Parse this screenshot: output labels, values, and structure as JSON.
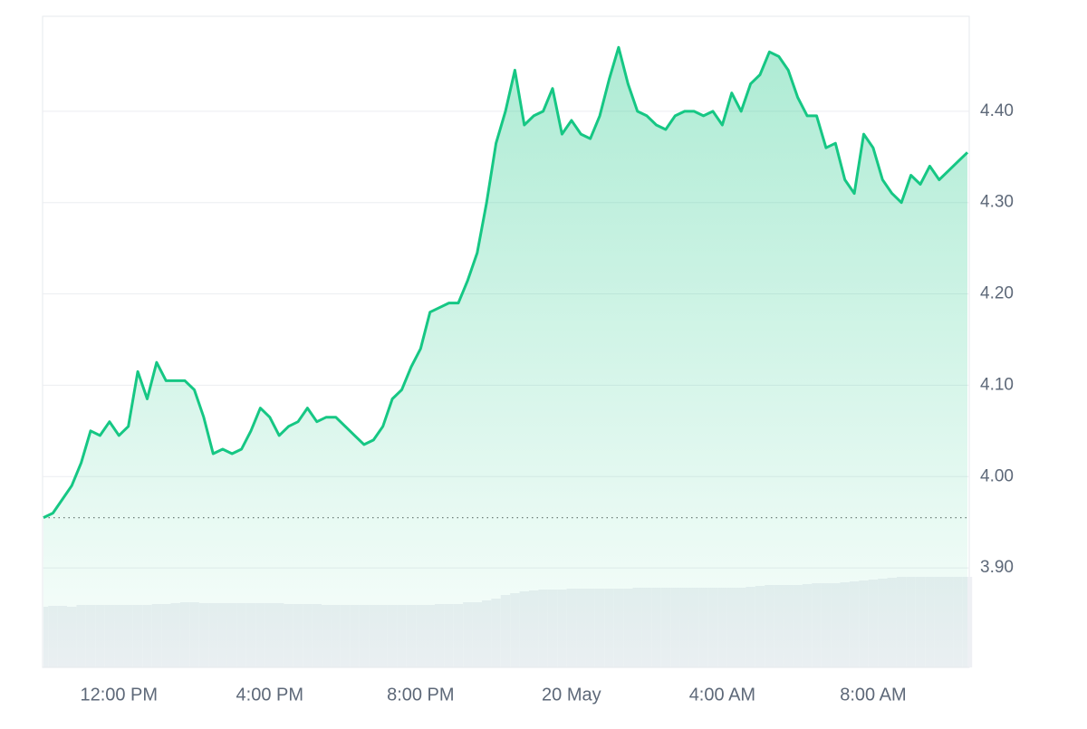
{
  "chart_data": {
    "type": "line",
    "categories": [
      null,
      null,
      null,
      null,
      null,
      null,
      null,
      null,
      "12:00 PM",
      null,
      null,
      null,
      null,
      null,
      null,
      null,
      null,
      null,
      null,
      null,
      null,
      null,
      null,
      null,
      "4:00 PM",
      null,
      null,
      null,
      null,
      null,
      null,
      null,
      null,
      null,
      null,
      null,
      null,
      null,
      null,
      null,
      "8:00 PM",
      null,
      null,
      null,
      null,
      null,
      null,
      null,
      null,
      null,
      null,
      null,
      null,
      null,
      null,
      null,
      "20 May",
      null,
      null,
      null,
      null,
      null,
      null,
      null,
      null,
      null,
      null,
      null,
      null,
      null,
      null,
      null,
      "4:00 AM",
      null,
      null,
      null,
      null,
      null,
      null,
      null,
      null,
      null,
      null,
      null,
      null,
      null,
      null,
      null,
      "8:00 AM",
      null,
      null,
      null,
      null,
      null,
      null,
      null,
      null,
      null,
      null
    ],
    "series": [
      {
        "color": "#16c784",
        "values": [
          3.955,
          3.96,
          3.975,
          3.99,
          4.015,
          4.05,
          4.045,
          4.06,
          4.045,
          4.055,
          4.115,
          4.085,
          4.125,
          4.105,
          4.105,
          4.105,
          4.095,
          4.065,
          4.025,
          4.03,
          4.025,
          4.03,
          4.05,
          4.075,
          4.065,
          4.045,
          4.055,
          4.06,
          4.075,
          4.06,
          4.065,
          4.065,
          4.055,
          4.045,
          4.035,
          4.04,
          4.055,
          4.085,
          4.095,
          4.12,
          4.14,
          4.18,
          4.185,
          4.19,
          4.19,
          4.215,
          4.245,
          4.3,
          4.365,
          4.4,
          4.445,
          4.385,
          4.395,
          4.4,
          4.425,
          4.375,
          4.39,
          4.375,
          4.37,
          4.395,
          4.435,
          4.47,
          4.43,
          4.4,
          4.395,
          4.385,
          4.38,
          4.395,
          4.4,
          4.4,
          4.395,
          4.4,
          4.385,
          4.42,
          4.4,
          4.43,
          4.44,
          4.465,
          4.46,
          4.445,
          4.415,
          4.395,
          4.395,
          4.36,
          4.365,
          4.325,
          4.31,
          4.375,
          4.36,
          4.325,
          4.31,
          4.3,
          4.33,
          4.32,
          4.34,
          4.325,
          4.335,
          4.345,
          4.355
        ]
      },
      {
        "color": "#eef0f4",
        "axis": "y2",
        "values": [
          67,
          68,
          68,
          67,
          69,
          69,
          69,
          69,
          69,
          69,
          69,
          69,
          70,
          70,
          71,
          72,
          72,
          71,
          71,
          71,
          71,
          71,
          71,
          71,
          71,
          71,
          70,
          70,
          70,
          70,
          69,
          69,
          69,
          69,
          69,
          69,
          69,
          69,
          69,
          69,
          69,
          69,
          70,
          70,
          70,
          72,
          72,
          74,
          76,
          80,
          82,
          84,
          85,
          86,
          86,
          86,
          87,
          87,
          87,
          87,
          87,
          87,
          87,
          88,
          88,
          88,
          88,
          88,
          88,
          88,
          88,
          88,
          88,
          88,
          88,
          89,
          90,
          91,
          91,
          91,
          91,
          92,
          93,
          93,
          93,
          94,
          95,
          96,
          97,
          98,
          99,
          100,
          100,
          100,
          100,
          100,
          100,
          100,
          100
        ]
      }
    ],
    "reference_line": 3.955,
    "ylim": [
      3.791,
      4.504
    ],
    "yticks": [
      {
        "value": 3.9,
        "label": "3.90"
      },
      {
        "value": 4.0,
        "label": "4.00"
      },
      {
        "value": 4.1,
        "label": "4.10"
      },
      {
        "value": 4.2,
        "label": "4.20"
      },
      {
        "value": 4.3,
        "label": "4.30"
      },
      {
        "value": 4.4,
        "label": "4.40"
      }
    ],
    "y2lim": [
      0,
      100
    ],
    "grid": true
  }
}
